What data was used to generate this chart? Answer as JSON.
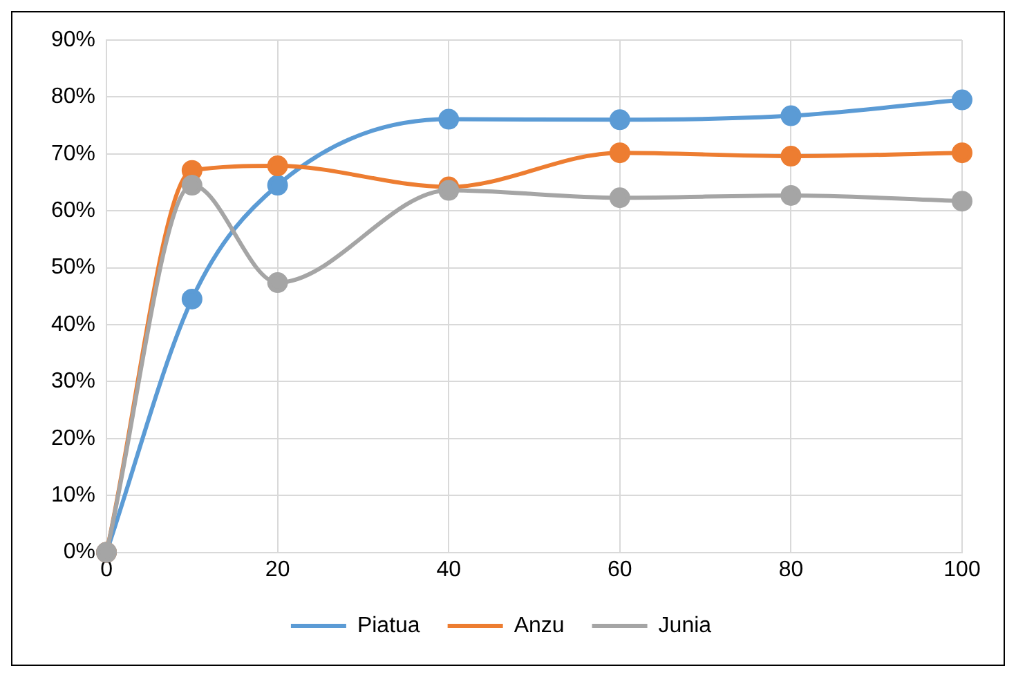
{
  "chart_data": {
    "type": "line",
    "x": [
      0,
      10,
      20,
      40,
      60,
      80,
      100
    ],
    "series": [
      {
        "name": "Piatua",
        "color": "#5b9bd5",
        "values": [
          0,
          44.5,
          64.5,
          76.1,
          76.0,
          76.7,
          79.5
        ]
      },
      {
        "name": "Anzu",
        "color": "#ed7d31",
        "values": [
          0,
          67.1,
          67.9,
          64.2,
          70.2,
          69.6,
          70.2
        ]
      },
      {
        "name": "Junia",
        "color": "#a5a5a5",
        "values": [
          0,
          64.5,
          47.4,
          63.6,
          62.3,
          62.7,
          61.7
        ]
      }
    ],
    "xlim": [
      0,
      100
    ],
    "xticks": [
      0,
      20,
      40,
      60,
      80,
      100
    ],
    "ylim": [
      0,
      90
    ],
    "yticks": [
      {
        "value": 0,
        "label": "0%"
      },
      {
        "value": 10,
        "label": "10%"
      },
      {
        "value": 20,
        "label": "20%"
      },
      {
        "value": 30,
        "label": "30%"
      },
      {
        "value": 40,
        "label": "40%"
      },
      {
        "value": 50,
        "label": "50%"
      },
      {
        "value": 60,
        "label": "60%"
      },
      {
        "value": 70,
        "label": "70%"
      },
      {
        "value": 80,
        "label": "80%"
      },
      {
        "value": 90,
        "label": "90%"
      }
    ],
    "grid": true,
    "legend": "bottom",
    "marker": "circle",
    "line_style": "solid"
  }
}
